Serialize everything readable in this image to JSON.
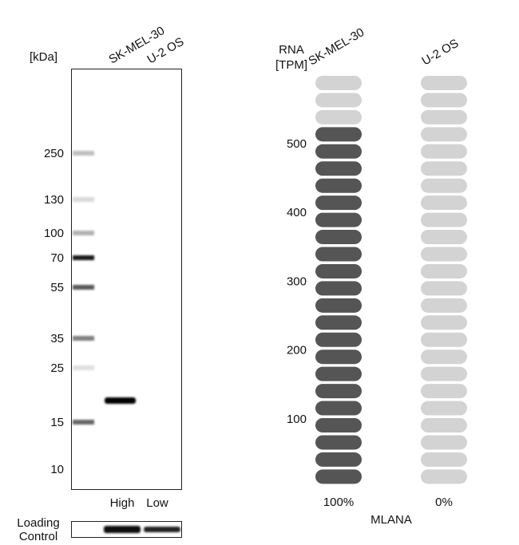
{
  "blot": {
    "unit_label": "[kDa]",
    "lanes": [
      "SK-MEL-30",
      "U-2 OS"
    ],
    "markers": [
      "250",
      "130",
      "100",
      "70",
      "55",
      "35",
      "25",
      "15",
      "10"
    ],
    "levels": [
      "High",
      "Low"
    ],
    "loading_label": [
      "Loading",
      "Control"
    ]
  },
  "rna": {
    "axis_label": [
      "RNA",
      "[TPM]"
    ],
    "yticks": [
      100,
      200,
      300,
      400,
      500
    ],
    "total_pills": 24,
    "columns": [
      {
        "name": "SK-MEL-30",
        "filled": 21,
        "percent_label": "100%"
      },
      {
        "name": "U-2 OS",
        "filled": 0,
        "percent_label": "0%"
      }
    ],
    "gene": "MLANA"
  }
}
